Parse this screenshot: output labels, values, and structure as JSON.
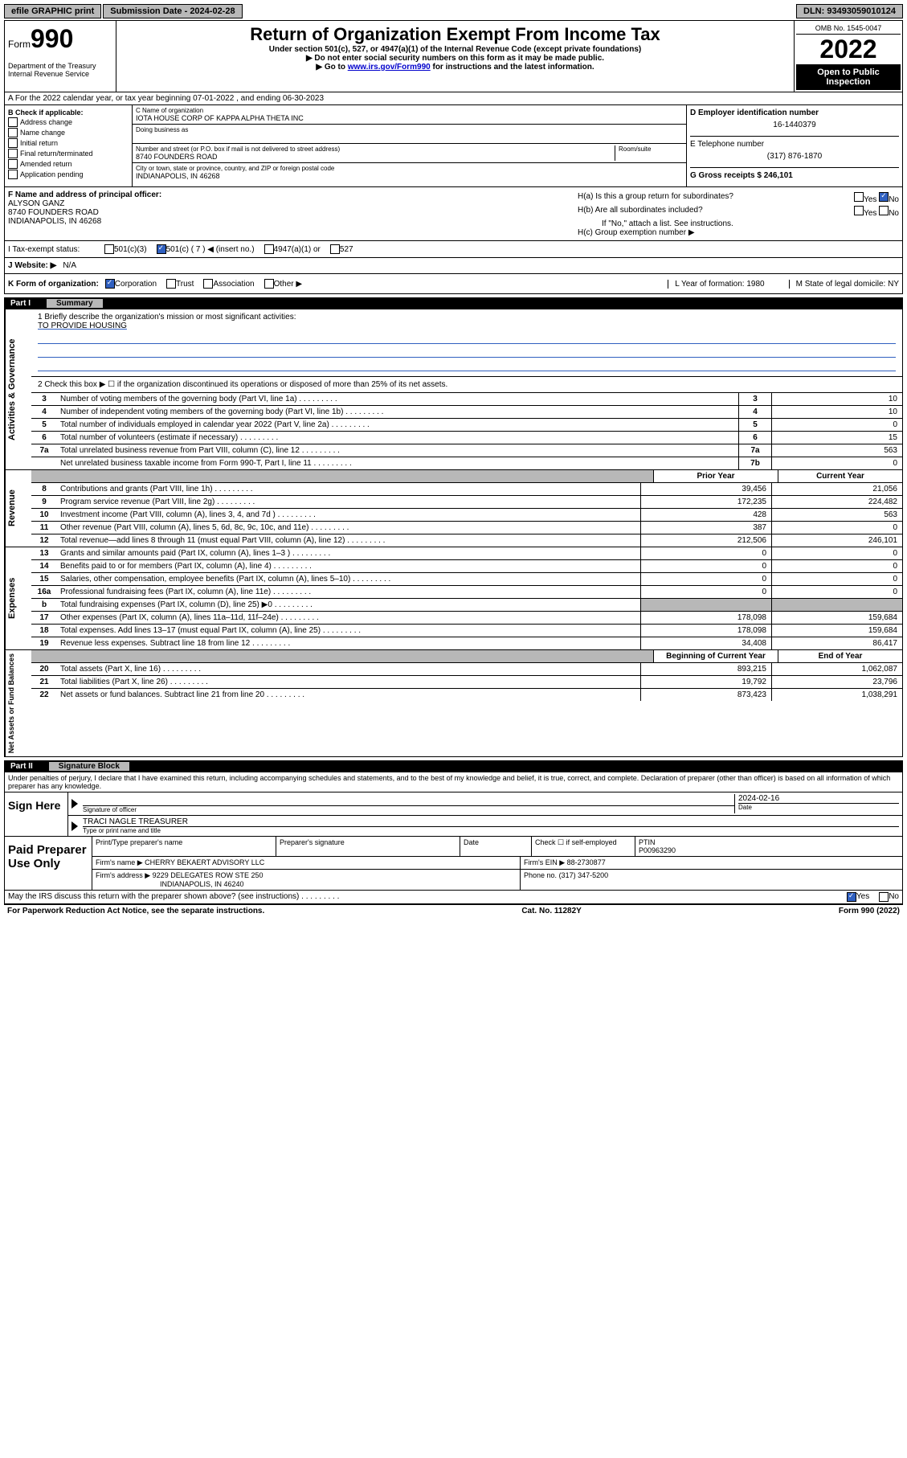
{
  "topbar": {
    "efile": "efile GRAPHIC print",
    "submission_label": "Submission Date - 2024-02-28",
    "dln": "DLN: 93493059010124"
  },
  "header": {
    "form_prefix": "Form",
    "form_num": "990",
    "dept": "Department of the Treasury Internal Revenue Service",
    "title": "Return of Organization Exempt From Income Tax",
    "sub1": "Under section 501(c), 527, or 4947(a)(1) of the Internal Revenue Code (except private foundations)",
    "sub2": "▶ Do not enter social security numbers on this form as it may be made public.",
    "sub3_pre": "▶ Go to ",
    "sub3_link": "www.irs.gov/Form990",
    "sub3_post": " for instructions and the latest information.",
    "omb": "OMB No. 1545-0047",
    "year": "2022",
    "open": "Open to Public Inspection"
  },
  "row_a": "A For the 2022 calendar year, or tax year beginning 07-01-2022   , and ending 06-30-2023",
  "col_b": {
    "label": "B Check if applicable:",
    "opts": [
      "Address change",
      "Name change",
      "Initial return",
      "Final return/terminated",
      "Amended return",
      "Application pending"
    ]
  },
  "col_c": {
    "name_label": "C Name of organization",
    "name": "IOTA HOUSE CORP OF KAPPA ALPHA THETA INC",
    "dba_label": "Doing business as",
    "addr_label": "Number and street (or P.O. box if mail is not delivered to street address)",
    "room_label": "Room/suite",
    "addr": "8740 FOUNDERS ROAD",
    "city_label": "City or town, state or province, country, and ZIP or foreign postal code",
    "city": "INDIANAPOLIS, IN  46268"
  },
  "col_d": {
    "d_label": "D Employer identification number",
    "d_val": "16-1440379",
    "e_label": "E Telephone number",
    "e_val": "(317) 876-1870",
    "g_label": "G Gross receipts $ 246,101"
  },
  "col_f": {
    "label": "F  Name and address of principal officer:",
    "name": "ALYSON GANZ",
    "addr1": "8740 FOUNDERS ROAD",
    "addr2": "INDIANAPOLIS, IN  46268"
  },
  "col_h": {
    "ha": "H(a)  Is this a group return for subordinates?",
    "ha_yes": "Yes",
    "ha_no": "No",
    "hb": "H(b)  Are all subordinates included?",
    "hb_yes": "Yes",
    "hb_no": "No",
    "hb_note": "If \"No,\" attach a list. See instructions.",
    "hc": "H(c)  Group exemption number ▶"
  },
  "row_i": {
    "label": "I   Tax-exempt status:",
    "o1": "501(c)(3)",
    "o2": "501(c) ( 7 ) ◀ (insert no.)",
    "o3": "4947(a)(1) or",
    "o4": "527"
  },
  "row_j": {
    "label": "J   Website: ▶",
    "val": "N/A"
  },
  "row_k": {
    "label": "K Form of organization:",
    "o1": "Corporation",
    "o2": "Trust",
    "o3": "Association",
    "o4": "Other ▶",
    "l": "L Year of formation: 1980",
    "m": "M State of legal domicile: NY"
  },
  "part1": {
    "label": "Part I",
    "title": "Summary"
  },
  "summary": {
    "line1": "1   Briefly describe the organization's mission or most significant activities:",
    "mission": "TO PROVIDE HOUSING",
    "line2": "2   Check this box ▶ ☐  if the organization discontinued its operations or disposed of more than 25% of its net assets.",
    "rows": [
      {
        "n": "3",
        "d": "Number of voting members of the governing body (Part VI, line 1a)",
        "b": "3",
        "v": "10"
      },
      {
        "n": "4",
        "d": "Number of independent voting members of the governing body (Part VI, line 1b)",
        "b": "4",
        "v": "10"
      },
      {
        "n": "5",
        "d": "Total number of individuals employed in calendar year 2022 (Part V, line 2a)",
        "b": "5",
        "v": "0"
      },
      {
        "n": "6",
        "d": "Total number of volunteers (estimate if necessary)",
        "b": "6",
        "v": "15"
      },
      {
        "n": "7a",
        "d": "Total unrelated business revenue from Part VIII, column (C), line 12",
        "b": "7a",
        "v": "563"
      },
      {
        "n": "",
        "d": "Net unrelated business taxable income from Form 990-T, Part I, line 11",
        "b": "7b",
        "v": "0"
      }
    ],
    "prior_label": "Prior Year",
    "current_label": "Current Year",
    "rev_rows": [
      {
        "n": "8",
        "d": "Contributions and grants (Part VIII, line 1h)",
        "p": "39,456",
        "c": "21,056"
      },
      {
        "n": "9",
        "d": "Program service revenue (Part VIII, line 2g)",
        "p": "172,235",
        "c": "224,482"
      },
      {
        "n": "10",
        "d": "Investment income (Part VIII, column (A), lines 3, 4, and 7d )",
        "p": "428",
        "c": "563"
      },
      {
        "n": "11",
        "d": "Other revenue (Part VIII, column (A), lines 5, 6d, 8c, 9c, 10c, and 11e)",
        "p": "387",
        "c": "0"
      },
      {
        "n": "12",
        "d": "Total revenue—add lines 8 through 11 (must equal Part VIII, column (A), line 12)",
        "p": "212,506",
        "c": "246,101"
      }
    ],
    "exp_rows": [
      {
        "n": "13",
        "d": "Grants and similar amounts paid (Part IX, column (A), lines 1–3 )",
        "p": "0",
        "c": "0"
      },
      {
        "n": "14",
        "d": "Benefits paid to or for members (Part IX, column (A), line 4)",
        "p": "0",
        "c": "0"
      },
      {
        "n": "15",
        "d": "Salaries, other compensation, employee benefits (Part IX, column (A), lines 5–10)",
        "p": "0",
        "c": "0"
      },
      {
        "n": "16a",
        "d": "Professional fundraising fees (Part IX, column (A), line 11e)",
        "p": "0",
        "c": "0"
      },
      {
        "n": "b",
        "d": "Total fundraising expenses (Part IX, column (D), line 25) ▶0",
        "p": "",
        "c": "",
        "grey": true
      },
      {
        "n": "17",
        "d": "Other expenses (Part IX, column (A), lines 11a–11d, 11f–24e)",
        "p": "178,098",
        "c": "159,684"
      },
      {
        "n": "18",
        "d": "Total expenses. Add lines 13–17 (must equal Part IX, column (A), line 25)",
        "p": "178,098",
        "c": "159,684"
      },
      {
        "n": "19",
        "d": "Revenue less expenses. Subtract line 18 from line 12",
        "p": "34,408",
        "c": "86,417"
      }
    ],
    "begin_label": "Beginning of Current Year",
    "end_label": "End of Year",
    "net_rows": [
      {
        "n": "20",
        "d": "Total assets (Part X, line 16)",
        "p": "893,215",
        "c": "1,062,087"
      },
      {
        "n": "21",
        "d": "Total liabilities (Part X, line 26)",
        "p": "19,792",
        "c": "23,796"
      },
      {
        "n": "22",
        "d": "Net assets or fund balances. Subtract line 21 from line 20",
        "p": "873,423",
        "c": "1,038,291"
      }
    ]
  },
  "vtabs": {
    "gov": "Activities & Governance",
    "rev": "Revenue",
    "exp": "Expenses",
    "net": "Net Assets or Fund Balances"
  },
  "part2": {
    "label": "Part II",
    "title": "Signature Block"
  },
  "sig": {
    "decl": "Under penalties of perjury, I declare that I have examined this return, including accompanying schedules and statements, and to the best of my knowledge and belief, it is true, correct, and complete. Declaration of preparer (other than officer) is based on all information of which preparer has any knowledge.",
    "sign_here": "Sign Here",
    "sig_officer": "Signature of officer",
    "date": "Date",
    "date_val": "2024-02-16",
    "name_title": "TRACI NAGLE  TREASURER",
    "type_label": "Type or print name and title"
  },
  "paid": {
    "label": "Paid Preparer Use Only",
    "h1": "Print/Type preparer's name",
    "h2": "Preparer's signature",
    "h3": "Date",
    "h4_pre": "Check ☐  if self-employed",
    "h5": "PTIN",
    "h5_val": "P00963290",
    "firm_name_label": "Firm's name   ▶",
    "firm_name": "CHERRY BEKAERT ADVISORY LLC",
    "firm_ein_label": "Firm's EIN ▶",
    "firm_ein": "88-2730877",
    "firm_addr_label": "Firm's address ▶",
    "firm_addr": "9229 DELEGATES ROW STE 250",
    "firm_city": "INDIANAPOLIS, IN  46240",
    "phone_label": "Phone no.",
    "phone": "(317) 347-5200"
  },
  "discuss": {
    "q": "May the IRS discuss this return with the preparer shown above? (see instructions)",
    "yes": "Yes",
    "no": "No"
  },
  "footer": {
    "left": "For Paperwork Reduction Act Notice, see the separate instructions.",
    "mid": "Cat. No. 11282Y",
    "right": "Form 990 (2022)"
  }
}
